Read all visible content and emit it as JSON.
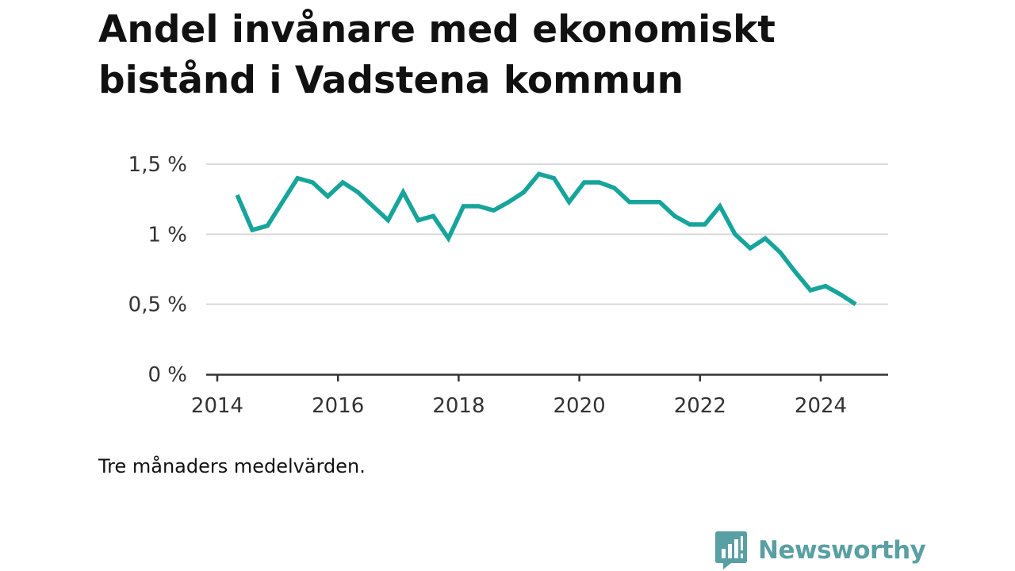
{
  "title": "Andel invånare med ekonomiskt bistånd i Vadstena kommun",
  "note": "Tre månaders medelvärden.",
  "brand": {
    "name": "Newsworthy",
    "color": "#5a9fa3",
    "icon": "newsworthy-logo-icon"
  },
  "chart_data": {
    "type": "line",
    "title": "Andel invånare med ekonomiskt bistånd i Vadstena kommun",
    "xlabel": "",
    "ylabel": "",
    "x_range": [
      2014,
      2025.1
    ],
    "ylim": [
      0,
      1.5
    ],
    "grid": true,
    "legend": "none",
    "line_color": "#16a49b",
    "y_ticks": [
      {
        "value": 0,
        "label": "0 %"
      },
      {
        "value": 0.5,
        "label": "0,5 %"
      },
      {
        "value": 1,
        "label": "1 %"
      },
      {
        "value": 1.5,
        "label": "1,5 %"
      }
    ],
    "x_ticks": [
      {
        "value": 2014,
        "label": "2014"
      },
      {
        "value": 2016,
        "label": "2016"
      },
      {
        "value": 2018,
        "label": "2018"
      },
      {
        "value": 2020,
        "label": "2020"
      },
      {
        "value": 2022,
        "label": "2022"
      },
      {
        "value": 2024,
        "label": "2024"
      }
    ],
    "series": [
      {
        "x": [
          2014.33,
          2014.58,
          2014.83,
          2015.08,
          2015.33,
          2015.58,
          2015.83,
          2016.08,
          2016.33,
          2016.58,
          2016.83,
          2017.08,
          2017.33,
          2017.58,
          2017.83,
          2018.08,
          2018.33,
          2018.58,
          2018.83,
          2019.08,
          2019.33,
          2019.58,
          2019.83,
          2020.08,
          2020.33,
          2020.58,
          2020.83,
          2021.08,
          2021.33,
          2021.58,
          2021.83,
          2022.08,
          2022.33,
          2022.58,
          2022.83,
          2023.08,
          2023.33,
          2023.58,
          2023.83,
          2024.08,
          2024.33,
          2024.58
        ],
        "y": [
          1.28,
          1.03,
          1.06,
          1.23,
          1.4,
          1.37,
          1.27,
          1.37,
          1.3,
          1.2,
          1.1,
          1.3,
          1.1,
          1.13,
          0.97,
          1.2,
          1.2,
          1.17,
          1.23,
          1.3,
          1.43,
          1.4,
          1.23,
          1.37,
          1.37,
          1.33,
          1.23,
          1.23,
          1.23,
          1.13,
          1.07,
          1.07,
          1.2,
          1.0,
          0.9,
          0.97,
          0.87,
          0.73,
          0.6,
          0.63,
          0.57,
          0.5
        ]
      }
    ]
  }
}
